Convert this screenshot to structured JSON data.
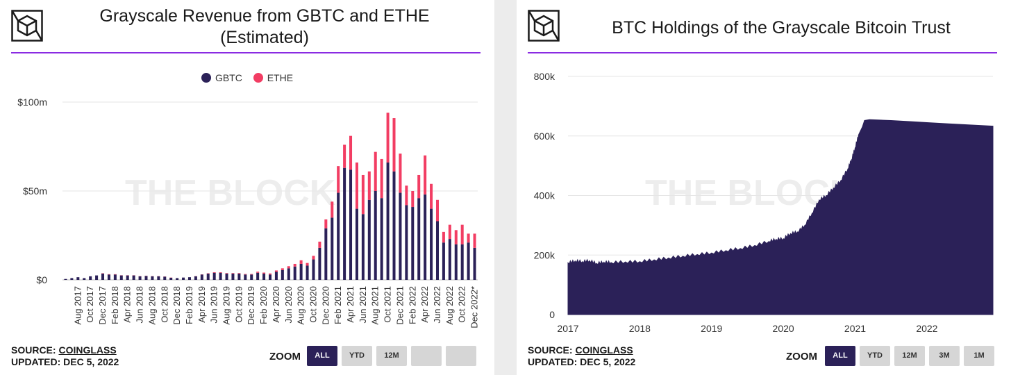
{
  "left": {
    "title_line1": "Grayscale Revenue from GBTC and ETHE",
    "title_line2": "(Estimated)",
    "source_label": "SOURCE: ",
    "source_name": "COINGLASS",
    "updated": "UPDATED: DEC 5, 2022",
    "zoom_label": "ZOOM",
    "zoom_buttons": [
      "ALL",
      "YTD",
      "12M",
      "",
      ""
    ]
  },
  "right": {
    "title": "BTC Holdings of the Grayscale Bitcoin Trust",
    "source_label": "SOURCE: ",
    "source_name": "COINGLASS",
    "updated": "UPDATED: DEC 5, 2022",
    "zoom_label": "ZOOM",
    "zoom_buttons": [
      "ALL",
      "YTD",
      "12M",
      "3M",
      "1M"
    ]
  },
  "watermark": "THE BLOCK",
  "colors": {
    "gbtc": "#2b2158",
    "ethe": "#f23d63",
    "accent": "#8a2be2",
    "area": "#2b2158"
  },
  "chart_data": [
    {
      "type": "bar",
      "stacked": true,
      "title": "Grayscale Revenue from GBTC and ETHE (Estimated)",
      "categories": [
        "Jun 2017",
        "Jul 2017",
        "Aug 2017",
        "Sep 2017",
        "Oct 2017",
        "Nov 2017",
        "Dec 2017",
        "Jan 2018",
        "Feb 2018",
        "Mar 2018",
        "Apr 2018",
        "May 2018",
        "Jun 2018",
        "Jul 2018",
        "Aug 2018",
        "Sep 2018",
        "Oct 2018",
        "Nov 2018",
        "Dec 2018",
        "Jan 2019",
        "Feb 2019",
        "Mar 2019",
        "Apr 2019",
        "May 2019",
        "Jun 2019",
        "Jul 2019",
        "Aug 2019",
        "Sep 2019",
        "Oct 2019",
        "Nov 2019",
        "Dec 2019",
        "Jan 2020",
        "Feb 2020",
        "Mar 2020",
        "Apr 2020",
        "May 2020",
        "Jun 2020",
        "Jul 2020",
        "Aug 2020",
        "Sep 2020",
        "Oct 2020",
        "Nov 2020",
        "Dec 2020",
        "Jan 2021",
        "Feb 2021",
        "Mar 2021",
        "Apr 2021",
        "May 2021",
        "Jun 2021",
        "Jul 2021",
        "Aug 2021",
        "Sep 2021",
        "Oct 2021",
        "Nov 2021",
        "Dec 2021",
        "Jan 2022",
        "Feb 2022",
        "Mar 2022",
        "Apr 2022",
        "May 2022",
        "Jun 2022",
        "Jul 2022",
        "Aug 2022",
        "Sep 2022",
        "Oct 2022",
        "Nov 2022",
        "Dec 2022*"
      ],
      "tick_labels": [
        "Aug 2017",
        "Oct 2017",
        "Dec 2017",
        "Feb 2018",
        "Apr 2018",
        "Jun 2018",
        "Aug 2018",
        "Oct 2018",
        "Dec 2018",
        "Feb 2019",
        "Apr 2019",
        "Jun 2019",
        "Aug 2019",
        "Oct 2019",
        "Dec 2019",
        "Feb 2020",
        "Apr 2020",
        "Jun 2020",
        "Aug 2020",
        "Oct 2020",
        "Dec 2020",
        "Feb 2021",
        "Apr 2021",
        "Jun 2021",
        "Aug 2021",
        "Oct 2021",
        "Dec 2021",
        "Feb 2022",
        "Apr 2022",
        "Jun 2022",
        "Aug 2022",
        "Oct 2022",
        "Dec 2022*"
      ],
      "series": [
        {
          "name": "GBTC",
          "values": [
            0.5,
            1,
            1.5,
            1,
            2,
            2.5,
            3.5,
            3,
            3,
            2.5,
            2.5,
            2.5,
            2,
            2.2,
            2,
            2,
            1.8,
            1.2,
            1,
            1.3,
            1.5,
            2,
            3,
            3.5,
            4,
            4,
            3.5,
            3.5,
            3.5,
            3,
            3,
            4,
            3.5,
            3,
            4.5,
            5.5,
            6.5,
            7.5,
            9,
            8,
            11.5,
            18,
            29,
            35,
            49,
            63,
            62,
            40,
            37,
            45,
            50,
            46,
            66,
            61,
            49,
            42,
            41,
            46,
            48,
            40,
            33,
            21,
            23,
            20,
            20,
            21,
            18
          ]
        },
        {
          "name": "ETHE",
          "values": [
            0,
            0,
            0,
            0,
            0,
            0,
            0.2,
            0.2,
            0.2,
            0.1,
            0.1,
            0.1,
            0.1,
            0.1,
            0.1,
            0.1,
            0.1,
            0.1,
            0,
            0,
            0,
            0.1,
            0.1,
            0.2,
            0.3,
            0.3,
            0.3,
            0.3,
            0.3,
            0.3,
            0.3,
            0.6,
            0.6,
            0.6,
            0.8,
            1,
            1.2,
            1.5,
            2,
            1.5,
            2,
            3.5,
            5,
            9,
            15,
            13,
            19,
            26,
            22,
            16,
            22,
            22,
            28,
            30,
            22,
            11,
            9,
            13,
            22,
            14,
            12,
            6,
            8,
            8,
            11,
            5,
            8
          ]
        }
      ],
      "ylim": [
        0,
        100
      ],
      "ytick_labels": [
        "$0",
        "$50m",
        "$100m"
      ],
      "legend": "top-center",
      "grid": true
    },
    {
      "type": "area",
      "title": "BTC Holdings of the Grayscale Bitcoin Trust",
      "x": [
        2017.0,
        2017.1,
        2017.2,
        2017.3,
        2017.4,
        2017.5,
        2017.6,
        2017.8,
        2018.0,
        2018.2,
        2018.4,
        2018.6,
        2018.8,
        2019.0,
        2019.2,
        2019.4,
        2019.6,
        2019.8,
        2019.9,
        2020.0,
        2020.1,
        2020.2,
        2020.3,
        2020.4,
        2020.5,
        2020.6,
        2020.7,
        2020.8,
        2020.9,
        2020.95,
        2021.0,
        2021.05,
        2021.1,
        2021.13,
        2021.2,
        2021.5,
        2021.8,
        2022.0,
        2022.3,
        2022.6,
        2022.92
      ],
      "y": [
        174000,
        180000,
        178000,
        181000,
        172000,
        176000,
        175000,
        177000,
        178000,
        184000,
        190000,
        196000,
        202000,
        207000,
        215000,
        222000,
        232000,
        246000,
        253000,
        255000,
        272000,
        278000,
        300000,
        340000,
        385000,
        400000,
        425000,
        450000,
        490000,
        520000,
        560000,
        605000,
        630000,
        652000,
        655000,
        652000,
        648000,
        645000,
        641000,
        637000,
        633000
      ],
      "xtick_labels": [
        "2017",
        "2018",
        "2019",
        "2020",
        "2021",
        "2022"
      ],
      "ytick_labels": [
        "0",
        "200k",
        "400k",
        "600k",
        "800k"
      ],
      "ylim": [
        0,
        800000
      ],
      "grid": true
    }
  ]
}
